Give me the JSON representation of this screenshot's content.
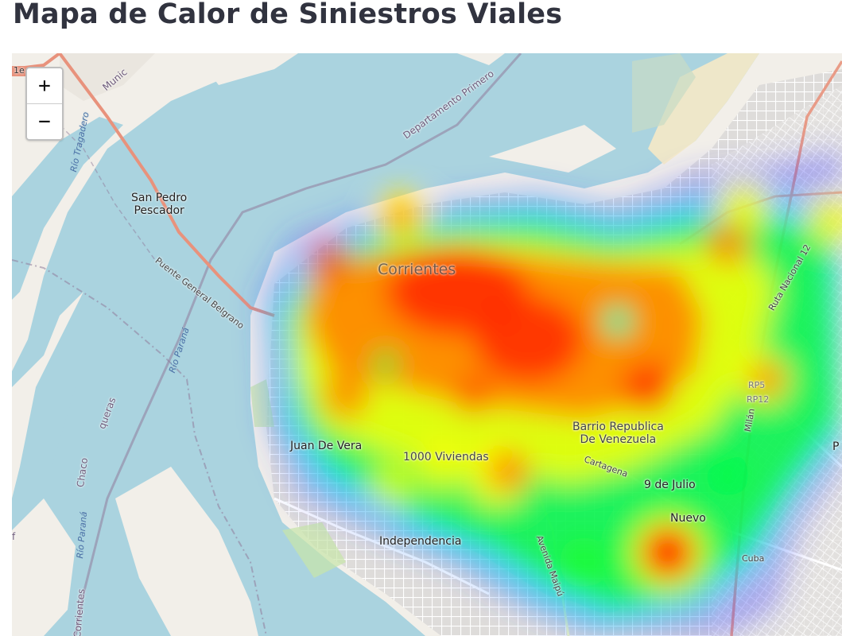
{
  "title": "Mapa de Calor de Siniestros Viales",
  "map": {
    "zoom_in": "+",
    "zoom_out": "−",
    "labels": {
      "san_pedro_pescador": "San Pedro\nPescador",
      "corrientes": "Corrientes",
      "juan_de_vera": "Juan De Vera",
      "mil_viviendas": "1000 Viviendas",
      "barrio_republica": "Barrio Republica\nDe Venezuela",
      "nueve_de_julio": "9 de Julio",
      "nuevo": "Nuevo",
      "independencia": "Independencia",
      "puente": "Puente General Belgrano",
      "departamento": "Departamento Primero",
      "ruta_12": "Ruta Nacional 12",
      "rp5": "RP5",
      "rp12": "RP12",
      "cartagena": "Cartagena",
      "milan": "Milán",
      "cuba": "Cuba",
      "artigas": "Avenida Maipú",
      "rio_parana_1": "Río Paraná",
      "rio_parana_2": "Río Paraná",
      "rio_tragadero": "Río Tragadero",
      "chaco": "Chaco",
      "corrientes_edge": "Corrientes",
      "municipio": "Munic",
      "queras": "queras",
      "edge_left": "f",
      "edge_right": "P",
      "edge_top": "1e"
    },
    "colors": {
      "water": "#aad3df",
      "land": "#f2efe9",
      "urban": "#e0dfdf",
      "sand": "#f5e9c6",
      "motorway": "#e8927c",
      "admin": "#8f7b9b",
      "street": "#ffffff"
    },
    "heatmap_gradient": [
      "#0000ff",
      "#00ffff",
      "#00ff00",
      "#ffff00",
      "#ff7f00",
      "#ff0000"
    ]
  }
}
